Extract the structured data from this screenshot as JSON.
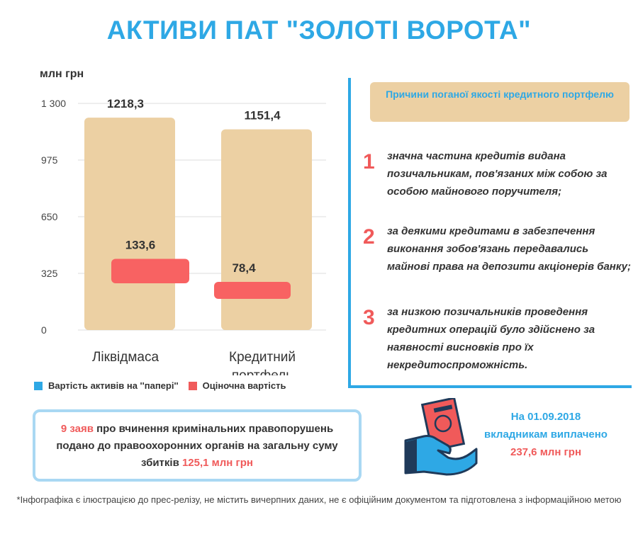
{
  "title": "АКТИВИ ПАТ \"ЗОЛОТІ ВОРОТА\"",
  "unit_label": "млн грн",
  "chart_data": {
    "type": "bar",
    "categories": [
      "Ліквідмаса",
      "Кредитний портфель"
    ],
    "category_lines": [
      [
        "Ліквідмаса"
      ],
      [
        "Кредитний",
        "портфель"
      ]
    ],
    "series": [
      {
        "name": "Вартість активів на ''папері''",
        "values": [
          1218.3,
          1151.4
        ],
        "labels": [
          "1218,3",
          "1151,4"
        ],
        "color": "#ecd0a3"
      },
      {
        "name": "Оціночна вартість",
        "values": [
          133.6,
          78.4
        ],
        "labels": [
          "133,6",
          "78,4"
        ],
        "color": "#f86262"
      }
    ],
    "ylim": [
      0,
      1300
    ],
    "yticks": [
      0,
      325,
      650,
      975,
      1300
    ],
    "ytick_labels": [
      "0",
      "325",
      "650",
      "975",
      "1 300"
    ],
    "ylabel": "млн грн",
    "grid": true,
    "legend_position": "bottom"
  },
  "legend": {
    "items": [
      {
        "label": "Вартість активів на ''папері''",
        "color": "#2ea8e5"
      },
      {
        "label": "Оціночна вартість",
        "color": "#f05a5a"
      }
    ]
  },
  "reasons": {
    "header": "Причини поганої якості кредитного портфелю",
    "items": [
      {
        "num": "1",
        "text": "значна частина кредитів видана позичальникам, пов'язаних між собою за особою майнового поручителя;"
      },
      {
        "num": "2",
        "text": "за деякими кредитами в забезпечення виконання зобов'язань передавались майнові права на депозити акціонерів банку;"
      },
      {
        "num": "3",
        "text": "за низкою позичальників проведення кредитних операцій було здійснено за наявності висновків про їх некредитоспроможність."
      }
    ]
  },
  "claims": {
    "count": "9 заяв",
    "text_main": " про вчинення кримінальних правопорушень подано до правоохоронних органів на загальну суму збитків ",
    "amount": "125,1 млн грн"
  },
  "payout": {
    "text": "На 01.09.2018 вкладникам виплачено",
    "amount": "237,6 млн грн"
  },
  "footnote": "*Інфографіка є ілюстрацією до прес-релізу, не містить вичерпних даних, не є офіційним документом та підготовлена з інформаційною метою",
  "colors": {
    "accent": "#2ea8e5",
    "red": "#f05a5a",
    "tan": "#ecd0a3"
  },
  "icons": {
    "payout": "hand-with-money-icon"
  }
}
